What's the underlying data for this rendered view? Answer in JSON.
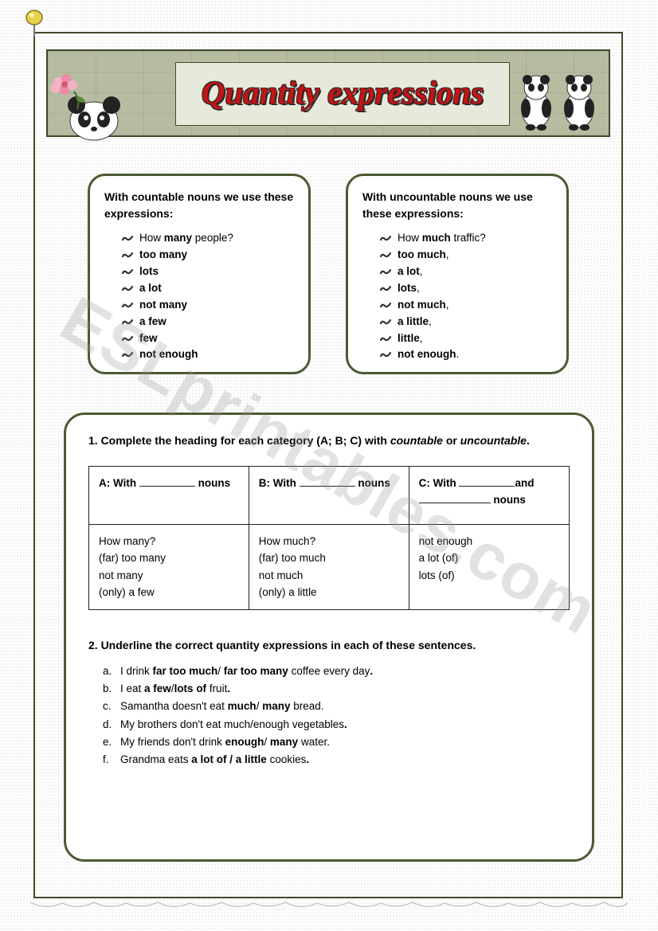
{
  "page": {
    "watermark": "ESLprintables.com",
    "title": "Quantity expressions",
    "colors": {
      "frame_border": "#3e4a2c",
      "box_border": "#4b5a33",
      "banner_bg": "#b6bca0",
      "banner_inner_bg": "#e7eadb",
      "title_fill": "#c41414",
      "title_outline": "#2b2b2b",
      "dot_pattern": "#d0d0d0"
    },
    "typography": {
      "body_font": "Century Gothic",
      "title_font": "Georgia italic bold",
      "body_size_pt": 10,
      "title_size_pt": 30
    }
  },
  "rule_boxes": {
    "left": {
      "heading": "With countable nouns we use these expressions:",
      "items": [
        {
          "pre": "How ",
          "bold": "many",
          "post": " people?"
        },
        {
          "pre": "",
          "bold": "too many",
          "post": ""
        },
        {
          "pre": "",
          "bold": "lots",
          "post": ""
        },
        {
          "pre": "",
          "bold": "a lot",
          "post": ""
        },
        {
          "pre": "",
          "bold": "not many",
          "post": ""
        },
        {
          "pre": "",
          "bold": "a few",
          "post": ""
        },
        {
          "pre": "",
          "bold": "few",
          "post": ""
        },
        {
          "pre": "",
          "bold": "not enough",
          "post": ""
        }
      ]
    },
    "right": {
      "heading": "With uncountable nouns we use these expressions:",
      "items": [
        {
          "pre": "How ",
          "bold": "much",
          "post": " traffic?"
        },
        {
          "pre": "",
          "bold": "too much",
          "post": ","
        },
        {
          "pre": "",
          "bold": "a lot",
          "post": ","
        },
        {
          "pre": "",
          "bold": "lots",
          "post": ","
        },
        {
          "pre": "",
          "bold": "not much",
          "post": ","
        },
        {
          "pre": "",
          "bold": "a little",
          "post": ","
        },
        {
          "pre": "",
          "bold": "little",
          "post": ","
        },
        {
          "pre": "",
          "bold": "not enough",
          "post": "."
        }
      ]
    }
  },
  "exercise1": {
    "instruction_pre": "1. Complete the heading for each category (A; B; C) with ",
    "instruction_ital1": "countable",
    "instruction_mid": " or ",
    "instruction_ital2": "uncountable",
    "instruction_post": ".",
    "headers": {
      "a_pre": "A: With ",
      "a_post": " nouns",
      "b_pre": "B: With ",
      "b_post": " nouns",
      "c_pre": "C: With ",
      "c_mid": "and ",
      "c_post": " nouns"
    },
    "cells": {
      "a": [
        "How many?",
        "(far) too many",
        "not many",
        "(only) a few"
      ],
      "b": [
        "How much?",
        "(far) too much",
        "not much",
        "(only) a little"
      ],
      "c": [
        "not enough",
        "a lot (of)",
        "lots (of)"
      ]
    }
  },
  "exercise2": {
    "instruction": "2. Underline the correct quantity expressions in each of these sentences.",
    "items": [
      {
        "label": "a.",
        "parts": [
          "I drink ",
          {
            "b": "far too much"
          },
          "/ ",
          {
            "b": "far too many"
          },
          " coffee every day",
          {
            "b": "."
          }
        ]
      },
      {
        "label": "b.",
        "parts": [
          "I eat ",
          {
            "b": "a few"
          },
          "/",
          {
            "b": "lots of"
          },
          " fruit",
          {
            "b": "."
          }
        ]
      },
      {
        "label": "c.",
        "parts": [
          "Samantha doesn't eat ",
          {
            "b": "much"
          },
          "/ ",
          {
            "b": "many"
          },
          " bread."
        ]
      },
      {
        "label": "d.",
        "parts": [
          " My brothers don't eat much/enough vegetables",
          {
            "b": "."
          }
        ]
      },
      {
        "label": "e.",
        "parts": [
          "My friends don't drink ",
          {
            "b": "enough"
          },
          "/ ",
          {
            "b": "many"
          },
          " water."
        ]
      },
      {
        "label": "f.",
        "parts": [
          "Grandma eats ",
          {
            "b": "a lot of / a little"
          },
          " cookies",
          {
            "b": "."
          }
        ]
      }
    ]
  }
}
